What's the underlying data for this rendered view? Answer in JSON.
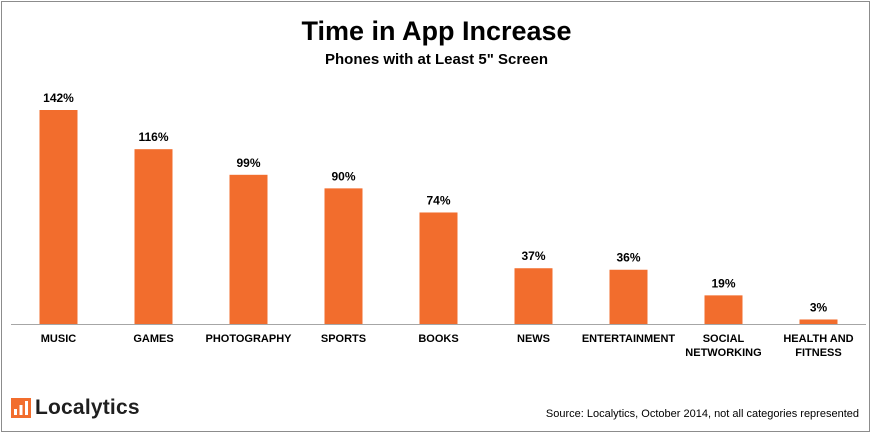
{
  "brand": {
    "name": "Localytics",
    "accent": "#f26d2d",
    "icon": "localytics-bar-logo-icon"
  },
  "source_note": "Source: Localytics, October 2014, not all categories represented",
  "chart_data": {
    "type": "bar",
    "title": "Time in App Increase",
    "subtitle": "Phones with at Least 5\" Screen",
    "xlabel": "",
    "ylabel": "",
    "categories": [
      [
        "MUSIC"
      ],
      [
        "GAMES"
      ],
      [
        "PHOTOGRAPHY"
      ],
      [
        "SPORTS"
      ],
      [
        "BOOKS"
      ],
      [
        "NEWS"
      ],
      [
        "ENTERTAINMENT"
      ],
      [
        "SOCIAL",
        "NETWORKING"
      ],
      [
        "HEALTH AND",
        "FITNESS"
      ]
    ],
    "values": [
      142,
      116,
      99,
      90,
      74,
      37,
      36,
      19,
      3
    ],
    "data_labels": [
      "142%",
      "116%",
      "99%",
      "90%",
      "74%",
      "37%",
      "36%",
      "19%",
      "3%"
    ],
    "unit": "%",
    "ylim": [
      0,
      142
    ],
    "grid": false,
    "legend": "none",
    "bar_color": "#f26d2d",
    "axis_color": "#a6a6a6"
  }
}
